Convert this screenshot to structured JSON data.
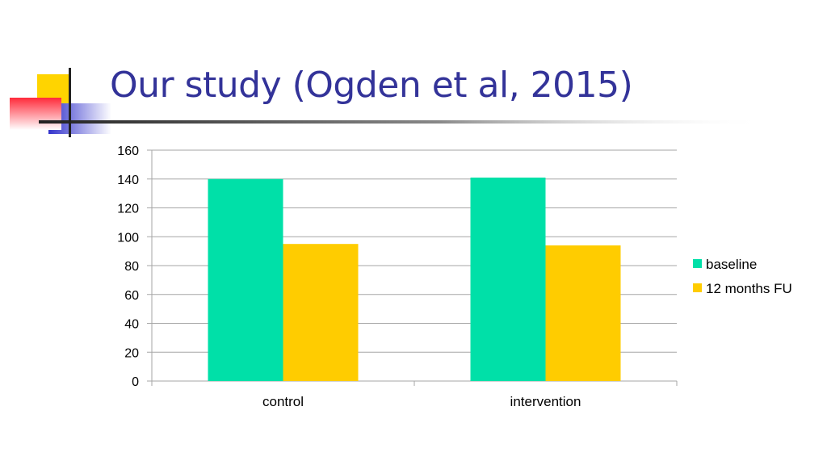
{
  "slide": {
    "title": "Our study (Ogden et al, 2015)"
  },
  "colors": {
    "title": "#333399",
    "baseline": "#00E0A8",
    "followup": "#FFCC00",
    "deco_yellow": "#FFD400",
    "deco_blue": "#3333CC",
    "deco_red": "#FF3344",
    "grid": "#A6A6A6"
  },
  "chart_data": {
    "type": "bar",
    "title": "",
    "xlabel": "",
    "ylabel": "",
    "categories": [
      "control",
      "intervention"
    ],
    "series": [
      {
        "name": "baseline",
        "values": [
          140,
          141
        ]
      },
      {
        "name": "12 months FU",
        "values": [
          95,
          94
        ]
      }
    ],
    "ylim": [
      0,
      160
    ],
    "yticks": [
      0,
      20,
      40,
      60,
      80,
      100,
      120,
      140,
      160
    ],
    "grid": true,
    "legend_position": "right"
  }
}
